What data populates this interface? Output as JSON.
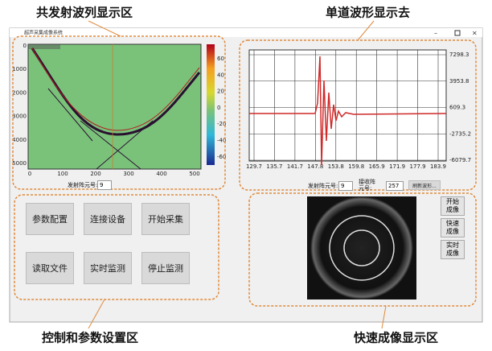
{
  "annotations": {
    "shot_gather_area": "共发射波列显示区",
    "waveform_area": "单道波形显示去",
    "control_area": "控制和参数设置区",
    "imaging_area": "快速成像显示区"
  },
  "window": {
    "title": "超声采集成像系统"
  },
  "shot_gather": {
    "y_ticks": [
      "0",
      "1000",
      "2000",
      "3000",
      "4000",
      "5000"
    ],
    "x_ticks": [
      "0",
      "100",
      "200",
      "300",
      "400",
      "500"
    ],
    "colorbar_ticks": [
      "60",
      "40",
      "20",
      "0",
      "-20",
      "-40",
      "-60"
    ],
    "source_label": "发射阵元号:",
    "source_value": "9"
  },
  "waveform": {
    "y_ticks": [
      "7298.3",
      "3953.8",
      "609.3",
      "-2735.2",
      "-6079.7"
    ],
    "x_ticks": [
      "129.7",
      "135.7",
      "141.7",
      "147.8",
      "153.8",
      "159.8",
      "165.9",
      "171.9",
      "177.9",
      "183.9"
    ],
    "source_label": "发射阵元号:",
    "source_value": "9",
    "receiver_label": "接收阵元号:",
    "receiver_value": "257",
    "refresh_button": "刷新波形..."
  },
  "controls": {
    "buttons": [
      "参数配置",
      "连接设备",
      "开始采集",
      "读取文件",
      "实时监测",
      "停止监测"
    ]
  },
  "imaging": {
    "buttons": [
      "开始成像",
      "快速成像",
      "实时成像"
    ]
  }
}
